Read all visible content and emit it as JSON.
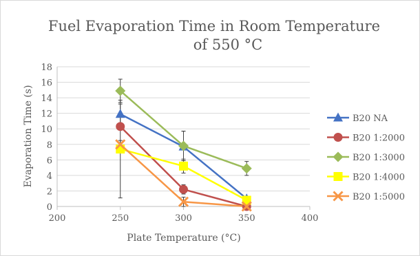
{
  "chart_data": {
    "type": "line",
    "title_lines": [
      "Fuel Evaporation Time in Room Temperature",
      "of 550 °C"
    ],
    "xlabel": "Plate Temperature (°C)",
    "ylabel": "Evaporation Time (s)",
    "xlim": [
      200,
      400
    ],
    "ylim": [
      0,
      18
    ],
    "x_ticks": [
      200,
      250,
      300,
      350,
      400
    ],
    "y_ticks": [
      0,
      2,
      4,
      6,
      8,
      10,
      12,
      14,
      16,
      18
    ],
    "grid": "horizontal",
    "legend_position": "right",
    "x": [
      250,
      300,
      350
    ],
    "series": [
      {
        "name": "B20 NA",
        "color": "#4472c4",
        "marker": "triangle",
        "values": [
          11.9,
          7.7,
          1.0
        ],
        "error": [
          1.3,
          2.0,
          0.0
        ]
      },
      {
        "name": "B20 1:2000",
        "color": "#c0504d",
        "marker": "circle",
        "values": [
          10.3,
          2.2,
          0.0
        ],
        "error": [
          0.4,
          0.6,
          0.0
        ]
      },
      {
        "name": "B20 1:3000",
        "color": "#9bbb59",
        "marker": "diamond",
        "values": [
          14.9,
          7.8,
          4.9
        ],
        "error": [
          1.5,
          1.9,
          0.9
        ]
      },
      {
        "name": "B20 1:4000",
        "color": "#ffff00",
        "marker": "square",
        "values": [
          7.4,
          5.2,
          0.8
        ],
        "error": [
          6.3,
          0.9,
          0.0
        ]
      },
      {
        "name": "B20 1:5000",
        "color": "#f79646",
        "marker": "x",
        "values": [
          8.0,
          0.6,
          0.0
        ],
        "error": [
          0.5,
          0.6,
          0.0
        ]
      }
    ]
  }
}
